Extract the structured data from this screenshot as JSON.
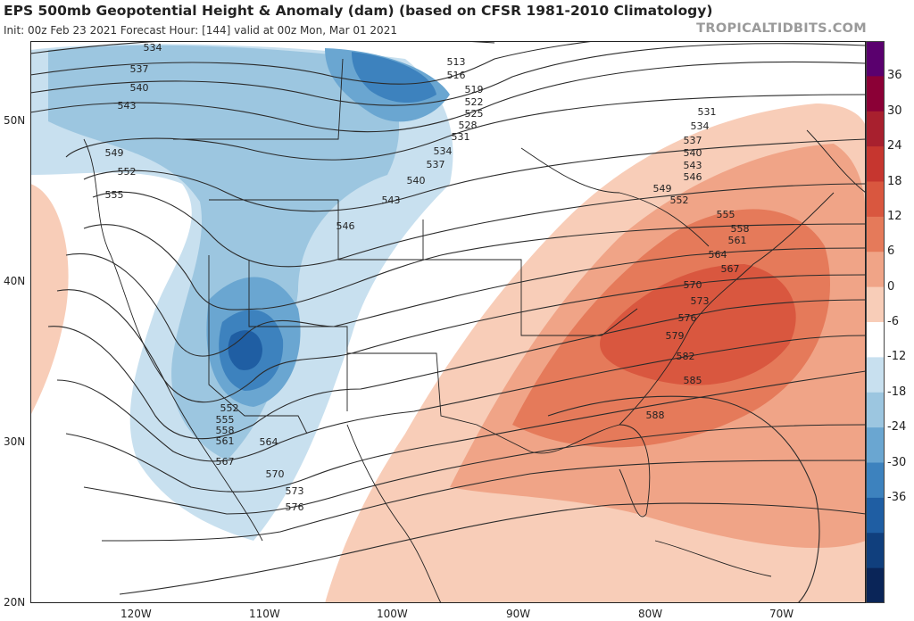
{
  "header": {
    "title": "EPS 500mb Geopotential Height & Anomaly (dam) (based on CFSR 1981-2010 Climatology)",
    "subtitle": "Init: 00z Feb 23 2021   Forecast Hour: [144]   valid at 00z Mon, Mar 01 2021",
    "brand": "TROPICALTIDBITS.COM"
  },
  "colorbar": {
    "labels": [
      "36",
      "30",
      "24",
      "18",
      "12",
      "6",
      "0",
      "-6",
      "-12",
      "-18",
      "-24",
      "-30",
      "-36"
    ],
    "colors": [
      "#5a006e",
      "#8b0036",
      "#a8202e",
      "#c6362f",
      "#d9573f",
      "#e57a5a",
      "#f0a487",
      "#f8cdb8",
      "#ffffff",
      "#c8e0ef",
      "#9cc6e0",
      "#6aa6d1",
      "#3d82be",
      "#1f5ea3",
      "#103f7d",
      "#0a2558"
    ]
  },
  "axes": {
    "lat_labels": [
      "50N",
      "40N",
      "30N",
      "20N"
    ],
    "lon_labels": [
      "120W",
      "110W",
      "100W",
      "90W",
      "80W",
      "70W"
    ]
  },
  "contours": {
    "labels": [
      "534",
      "537",
      "540",
      "543",
      "549",
      "552",
      "555",
      "513",
      "516",
      "519",
      "522",
      "525",
      "528",
      "531",
      "534",
      "537",
      "540",
      "543",
      "546",
      "543",
      "546",
      "531",
      "534",
      "537",
      "540",
      "543",
      "546",
      "549",
      "552",
      "555",
      "558",
      "561",
      "564",
      "567",
      "570",
      "573",
      "576",
      "579",
      "582",
      "585",
      "588",
      "552",
      "555",
      "558",
      "561",
      "564",
      "567",
      "570",
      "573",
      "576"
    ]
  }
}
